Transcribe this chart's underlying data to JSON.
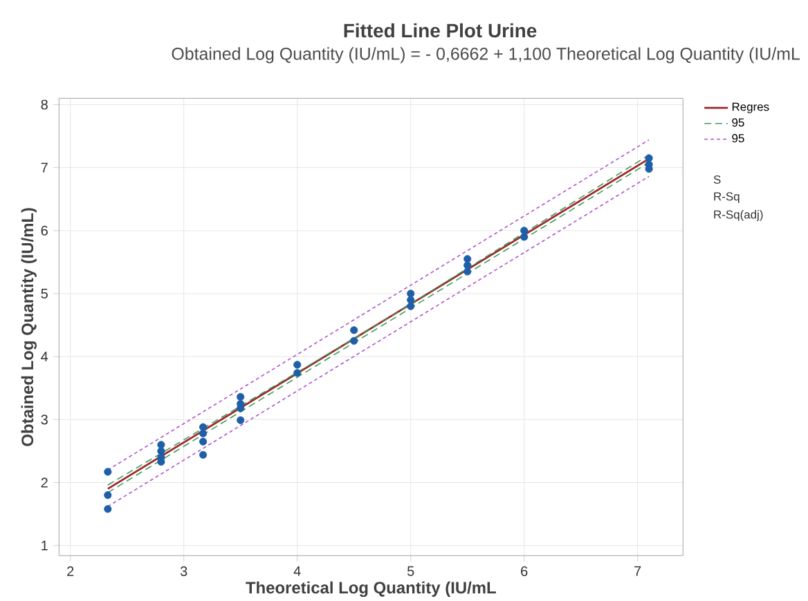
{
  "chart_data": {
    "type": "scatter",
    "title": "Fitted Line Plot Urine",
    "subtitle": "Obtained Log Quantity (IU/mL) = - 0,6662 + 1,100 Theoretical Log Quantity (IU/mL",
    "xlabel": "Theoretical Log Quantity (IU/mL",
    "ylabel": "Obtained Log Quantity (IU/mL)",
    "xlim": [
      1.9,
      7.4
    ],
    "xticks": [
      2,
      3,
      4,
      5,
      6,
      7
    ],
    "ylim": [
      0.84,
      8.1
    ],
    "yticks": [
      1,
      2,
      3,
      4,
      5,
      6,
      7,
      8
    ],
    "grid": true,
    "legend": "right",
    "series": [
      {
        "marker": "circle",
        "color": "#1f5fa8",
        "x": [
          2.33,
          2.33,
          2.33,
          2.8,
          2.8,
          2.8,
          2.8,
          3.17,
          3.17,
          3.17,
          3.17,
          3.5,
          3.5,
          3.5,
          3.5,
          4,
          4,
          4.5,
          4.5,
          5,
          5,
          5,
          5.5,
          5.5,
          5.5,
          6,
          6,
          7.1,
          7.1,
          7.1
        ],
        "values": [
          2.17,
          1.8,
          1.58,
          2.6,
          2.5,
          2.4,
          2.33,
          2.88,
          2.78,
          2.65,
          2.44,
          3.36,
          3.25,
          3.18,
          2.99,
          3.87,
          3.74,
          4.42,
          4.25,
          5.0,
          4.9,
          4.8,
          5.55,
          5.45,
          5.35,
          6.0,
          5.9,
          7.15,
          7.05,
          6.98
        ]
      },
      {
        "type": "line",
        "name": "Regres",
        "marker": "none",
        "color": "#a0282a",
        "line_style": "solid",
        "x": [
          2.33,
          7.1
        ],
        "values": [
          1.9,
          7.14
        ]
      },
      {
        "type": "line",
        "name": "95",
        "marker": "none",
        "color": "#3a9a5a",
        "line_style": "dashed",
        "x": [
          2.33,
          4.7,
          7.1
        ],
        "values": [
          1.96,
          4.5,
          7.2
        ]
      },
      {
        "type": "line",
        "marker": "none",
        "color": "#3a9a5a",
        "line_style": "dashed",
        "x": [
          2.33,
          4.7,
          7.1
        ],
        "values": [
          1.84,
          4.44,
          7.08
        ]
      },
      {
        "type": "line",
        "name": "95",
        "marker": "none",
        "color": "#b050d0",
        "line_style": "dotted",
        "x": [
          2.33,
          7.1
        ],
        "values": [
          2.2,
          7.44
        ]
      },
      {
        "type": "line",
        "marker": "none",
        "color": "#b050d0",
        "line_style": "dotted",
        "x": [
          2.33,
          7.1
        ],
        "values": [
          1.62,
          6.86
        ]
      }
    ],
    "annotations": [
      "S",
      "R-Sq",
      "R-Sq(adj)"
    ]
  }
}
